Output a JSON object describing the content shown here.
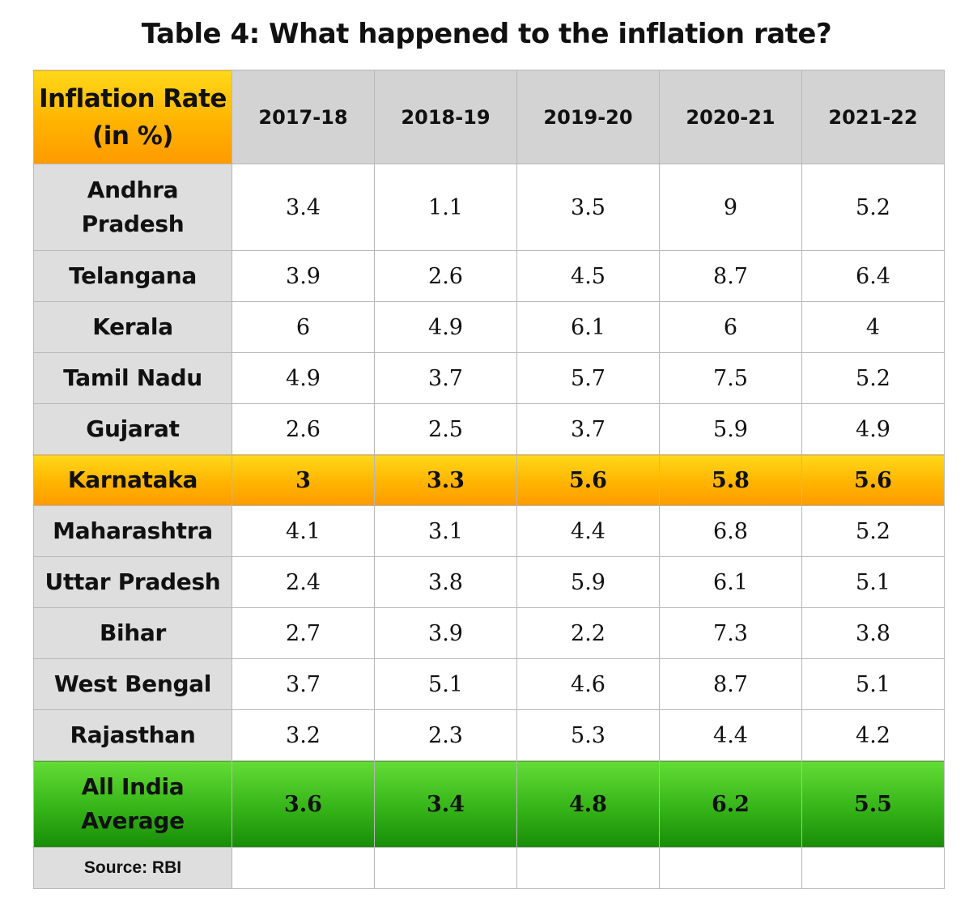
{
  "title": "Table 4: What happened to the inflation rate?",
  "header": {
    "corner_label": "Inflation Rate (in %)",
    "years": [
      "2017-18",
      "2018-19",
      "2019-20",
      "2020-21",
      "2021-22"
    ]
  },
  "rows": [
    {
      "state": "Andhra Pradesh",
      "values": [
        "3.4",
        "1.1",
        "3.5",
        "9",
        "5.2"
      ]
    },
    {
      "state": "Telangana",
      "values": [
        "3.9",
        "2.6",
        "4.5",
        "8.7",
        "6.4"
      ]
    },
    {
      "state": "Kerala",
      "values": [
        "6",
        "4.9",
        "6.1",
        "6",
        "4"
      ]
    },
    {
      "state": "Tamil Nadu",
      "values": [
        "4.9",
        "3.7",
        "5.7",
        "7.5",
        "5.2"
      ]
    },
    {
      "state": "Gujarat",
      "values": [
        "2.6",
        "2.5",
        "3.7",
        "5.9",
        "4.9"
      ]
    },
    {
      "state": "Karnataka",
      "values": [
        "3",
        "3.3",
        "5.6",
        "5.8",
        "5.6"
      ]
    },
    {
      "state": "Maharashtra",
      "values": [
        "4.1",
        "3.1",
        "4.4",
        "6.8",
        "5.2"
      ]
    },
    {
      "state": "Uttar Pradesh",
      "values": [
        "2.4",
        "3.8",
        "5.9",
        "6.1",
        "5.1"
      ]
    },
    {
      "state": "Bihar",
      "values": [
        "2.7",
        "3.9",
        "2.2",
        "7.3",
        "3.8"
      ]
    },
    {
      "state": "West Bengal",
      "values": [
        "3.7",
        "5.1",
        "4.6",
        "8.7",
        "5.1"
      ]
    },
    {
      "state": "Rajasthan",
      "values": [
        "3.2",
        "2.3",
        "5.3",
        "4.4",
        "4.2"
      ]
    },
    {
      "state": "All India Average",
      "values": [
        "3.6",
        "3.4",
        "4.8",
        "6.2",
        "5.5"
      ]
    }
  ],
  "source": "Source: RBI",
  "colors": {
    "highlight_orange": "#ffb300",
    "highlight_green": "#35b418",
    "header_grey": "#d3d3d3",
    "state_grey": "#dedede"
  }
}
